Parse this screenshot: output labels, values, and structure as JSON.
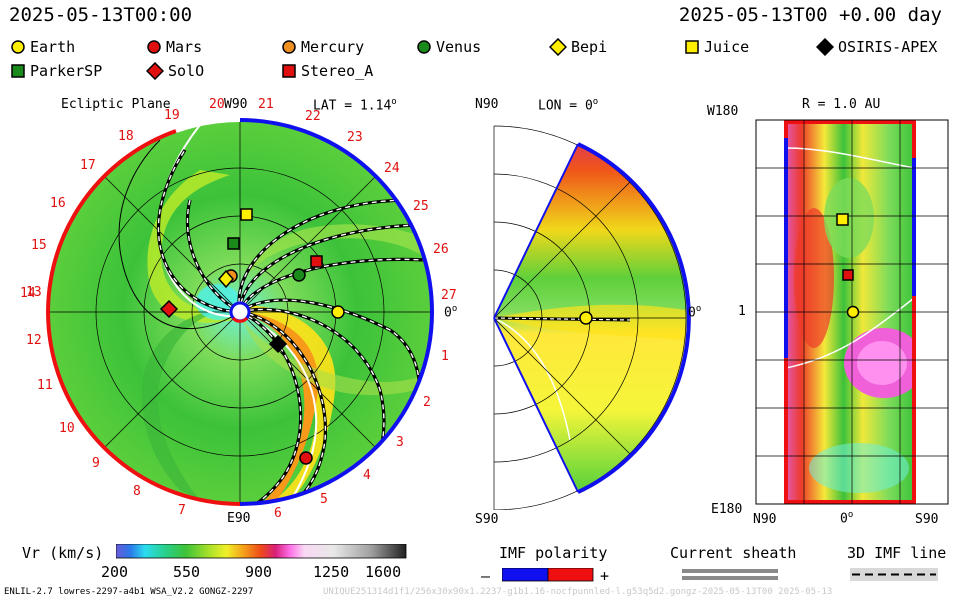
{
  "header": {
    "date_left": "2025-05-13T00:00",
    "date_right": "2025-05-13T00 +0.00 day"
  },
  "legend": [
    {
      "name": "Earth",
      "shape": "circle",
      "color": "#ffee00"
    },
    {
      "name": "Mars",
      "shape": "circle",
      "color": "#e01010"
    },
    {
      "name": "Mercury",
      "shape": "circle",
      "color": "#f09020"
    },
    {
      "name": "Venus",
      "shape": "circle",
      "color": "#1a8a1a"
    },
    {
      "name": "Bepi",
      "shape": "diamond",
      "color": "#ffee00"
    },
    {
      "name": "Juice",
      "shape": "square",
      "color": "#ffee00"
    },
    {
      "name": "OSIRIS-APEX",
      "shape": "diamond",
      "color": "#000000"
    },
    {
      "name": "ParkerSP",
      "shape": "square",
      "color": "#1a8a1a"
    },
    {
      "name": "SolO",
      "shape": "diamond",
      "color": "#e01010"
    },
    {
      "name": "Stereo_A",
      "shape": "square",
      "color": "#e01010"
    }
  ],
  "panel_ecliptic": {
    "title": "Ecliptic Plane",
    "w_label": "W90",
    "lat_label": "LAT = 1.14",
    "lat_deg": "o",
    "zero_label": "0",
    "zero_deg": "o",
    "bottom_label": "E90",
    "sector_labels": [
      "1",
      "2",
      "3",
      "4",
      "5",
      "6",
      "7",
      "8",
      "9",
      "10",
      "11",
      "12",
      "13",
      "14",
      "15",
      "16",
      "17",
      "18",
      "19",
      "20",
      "21",
      "22",
      "23",
      "24",
      "25",
      "26",
      "27"
    ]
  },
  "panel_meridional": {
    "top_label": "N90",
    "lon_label": "LON = 0",
    "lon_deg": "o",
    "zero_label": "0",
    "zero_deg": "o",
    "bottom_label": "S90"
  },
  "panel_map": {
    "r_label": "R = 1.0 AU",
    "top_left": "W180",
    "mid_left": "1",
    "bottom_left": "E180",
    "x_left": "N90",
    "x_mid": "0",
    "x_mid_deg": "o",
    "x_right": "S90"
  },
  "colorbar": {
    "label": "Vr (km/s)",
    "ticks": [
      "200",
      "550",
      "900",
      "1250",
      "1600"
    ]
  },
  "imf": {
    "title": "IMF polarity",
    "minus": "–",
    "plus": "+",
    "neg_color": "#1010ee",
    "pos_color": "#ee1010"
  },
  "sheath": {
    "title": "Current sheath"
  },
  "imf3d": {
    "title": "3D IMF line"
  },
  "footer": {
    "left": "ENLIL-2.7 lowres-2297-a4b1 WSA_V2.2 GONGZ-2297",
    "right": "UNIQUE251314d1f1/256x30x90x1.2237-g1b1.16-nocfpunnled-l.g53q5d2.gongz-2025-05-13T00 2025-05-13"
  },
  "chart_data": [
    {
      "type": "heatmap",
      "title": "Ecliptic Plane",
      "quantity": "Vr (km/s)",
      "color_range": [
        200,
        1600
      ],
      "bodies": [
        "Earth",
        "Mars",
        "Mercury",
        "Venus",
        "Bepi",
        "Juice",
        "OSIRIS-APEX",
        "ParkerSP",
        "SolO",
        "Stereo_A"
      ]
    },
    {
      "type": "heatmap",
      "title": "LON = 0",
      "latitude_range": [
        "S90",
        "N90"
      ],
      "bodies": [
        "Earth"
      ]
    },
    {
      "type": "heatmap",
      "title": "R = 1.0 AU",
      "x_range": [
        "N90",
        "S90"
      ],
      "y_range": [
        "W180",
        "E180"
      ],
      "bodies": [
        "Earth",
        "Juice",
        "Stereo_A"
      ]
    }
  ]
}
